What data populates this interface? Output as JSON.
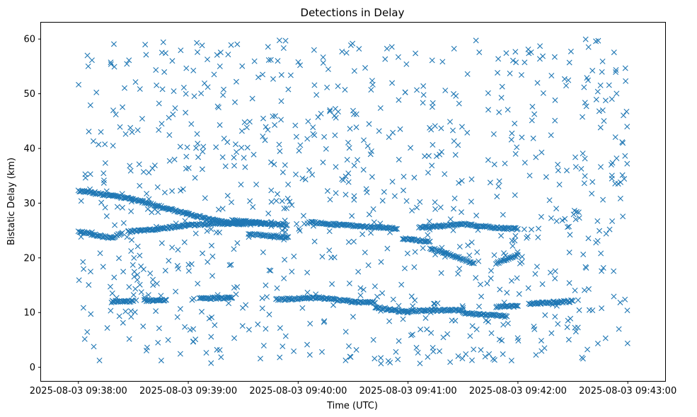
{
  "chart_data": {
    "type": "scatter",
    "title": "Detections in Delay",
    "xlabel": "Time (UTC)",
    "ylabel": "Bistatic Delay (km)",
    "x_range_minutes": [
      -0.34,
      5.34
    ],
    "ylim": [
      -2.5,
      63
    ],
    "x_ticks": [
      {
        "value": 0,
        "label": "2025-08-03 09:38:00"
      },
      {
        "value": 1,
        "label": "2025-08-03 09:39:00"
      },
      {
        "value": 2,
        "label": "2025-08-03 09:40:00"
      },
      {
        "value": 3,
        "label": "2025-08-03 09:41:00"
      },
      {
        "value": 4,
        "label": "2025-08-03 09:42:00"
      },
      {
        "value": 5,
        "label": "2025-08-03 09:43:00"
      }
    ],
    "y_ticks": [
      0,
      10,
      20,
      30,
      40,
      50,
      60
    ],
    "marker": "x",
    "series_color": "#1f77b4",
    "grid": false,
    "tracks": [
      {
        "points": [
          [
            0.0,
            32.3
          ],
          [
            0.5,
            30.7
          ],
          [
            1.0,
            28.0
          ],
          [
            1.3,
            26.6
          ],
          [
            1.5,
            26.1
          ]
        ]
      },
      {
        "points": [
          [
            0.0,
            24.8
          ],
          [
            0.3,
            23.6
          ],
          [
            0.4,
            24.6
          ]
        ]
      },
      {
        "points": [
          [
            0.45,
            24.8
          ],
          [
            0.6,
            25.0
          ],
          [
            1.0,
            26.0
          ],
          [
            1.3,
            26.3
          ],
          [
            1.7,
            26.3
          ]
        ]
      },
      {
        "points": [
          [
            1.4,
            26.8
          ],
          [
            1.9,
            26.0
          ]
        ]
      },
      {
        "points": [
          [
            1.55,
            24.3
          ],
          [
            1.9,
            23.8
          ]
        ]
      },
      {
        "points": [
          [
            2.1,
            26.5
          ],
          [
            2.4,
            26.0
          ],
          [
            2.8,
            25.5
          ],
          [
            2.9,
            25.3
          ]
        ]
      },
      {
        "points": [
          [
            2.95,
            23.5
          ],
          [
            3.2,
            23.0
          ]
        ]
      },
      {
        "points": [
          [
            3.1,
            25.5
          ],
          [
            3.5,
            26.2
          ],
          [
            3.8,
            25.5
          ],
          [
            4.0,
            25.3
          ]
        ]
      },
      {
        "points": [
          [
            3.2,
            21.8
          ],
          [
            3.4,
            20.5
          ],
          [
            3.6,
            19.0
          ]
        ]
      },
      {
        "points": [
          [
            3.8,
            19.0
          ],
          [
            4.0,
            20.5
          ]
        ]
      },
      {
        "points": [
          [
            0.3,
            12.0
          ],
          [
            0.5,
            12.1
          ]
        ]
      },
      {
        "points": [
          [
            0.6,
            12.2
          ],
          [
            0.8,
            12.3
          ]
        ]
      },
      {
        "points": [
          [
            1.1,
            12.6
          ],
          [
            1.4,
            12.7
          ]
        ]
      },
      {
        "points": [
          [
            1.8,
            12.4
          ],
          [
            2.2,
            12.7
          ],
          [
            2.5,
            12.0
          ],
          [
            2.7,
            11.8
          ]
        ]
      },
      {
        "points": [
          [
            2.7,
            11.0
          ],
          [
            3.0,
            10.0
          ]
        ]
      },
      {
        "points": [
          [
            3.0,
            10.3
          ],
          [
            3.5,
            10.5
          ]
        ]
      },
      {
        "points": [
          [
            3.5,
            9.9
          ],
          [
            3.9,
            9.3
          ]
        ]
      },
      {
        "points": [
          [
            3.8,
            11.0
          ],
          [
            4.0,
            11.2
          ]
        ]
      },
      {
        "points": [
          [
            4.1,
            11.6
          ],
          [
            4.5,
            12.1
          ]
        ]
      }
    ],
    "noise_point_count": 900
  }
}
